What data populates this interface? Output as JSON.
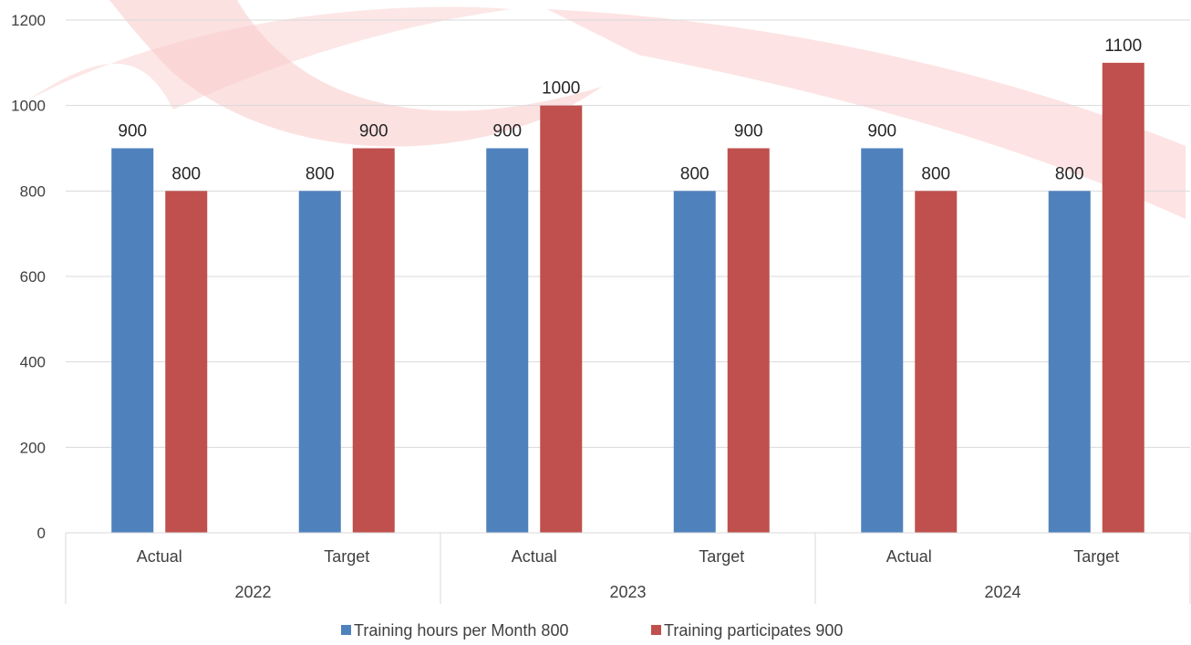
{
  "chart_data": {
    "type": "bar",
    "title": "",
    "xlabel": "",
    "ylabel": "",
    "ylim": [
      0,
      1200
    ],
    "yticks": [
      0,
      200,
      400,
      600,
      800,
      1000,
      1200
    ],
    "grid": true,
    "legend_position": "bottom",
    "groups": [
      {
        "label": "2022",
        "categories": [
          "Actual",
          "Target"
        ]
      },
      {
        "label": "2023",
        "categories": [
          "Actual",
          "Target"
        ]
      },
      {
        "label": "2024",
        "categories": [
          "Actual",
          "Target"
        ]
      }
    ],
    "categories": [
      "Actual",
      "Target",
      "Actual",
      "Target",
      "Actual",
      "Target"
    ],
    "series": [
      {
        "name": "Training hours per Month 800",
        "color": "#4f81bd",
        "values": [
          900,
          800,
          900,
          800,
          900,
          800
        ]
      },
      {
        "name": "Training participates 900",
        "color": "#c0504d",
        "values": [
          800,
          900,
          1000,
          900,
          800,
          1100
        ]
      }
    ]
  }
}
